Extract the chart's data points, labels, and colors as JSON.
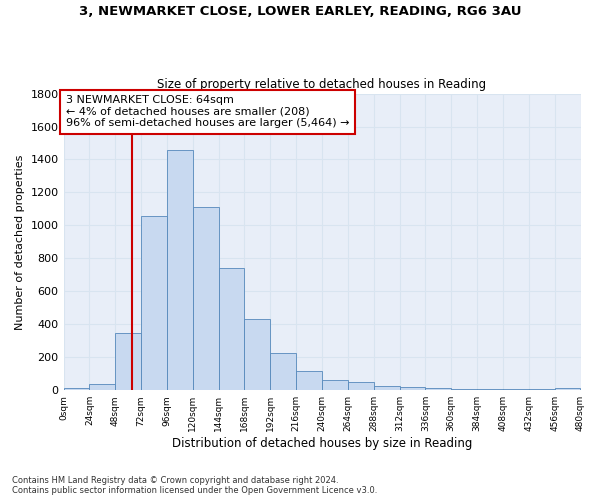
{
  "title1": "3, NEWMARKET CLOSE, LOWER EARLEY, READING, RG6 3AU",
  "title2": "Size of property relative to detached houses in Reading",
  "xlabel": "Distribution of detached houses by size in Reading",
  "ylabel": "Number of detached properties",
  "bin_edges": [
    0,
    24,
    48,
    72,
    96,
    120,
    144,
    168,
    192,
    216,
    240,
    264,
    288,
    312,
    336,
    360,
    384,
    408,
    432,
    456,
    480
  ],
  "bar_heights": [
    15,
    35,
    350,
    1060,
    1460,
    1110,
    740,
    435,
    225,
    115,
    60,
    50,
    28,
    20,
    15,
    10,
    8,
    5,
    5,
    15
  ],
  "bar_facecolor": "#c8d9f0",
  "bar_edgecolor": "#5588bb",
  "grid_color": "#d8e4f0",
  "bg_color": "#e8eef8",
  "fig_bg_color": "#ffffff",
  "vline_x": 64,
  "vline_color": "#cc0000",
  "annotation_text": "3 NEWMARKET CLOSE: 64sqm\n← 4% of detached houses are smaller (208)\n96% of semi-detached houses are larger (5,464) →",
  "annotation_box_color": "#ffffff",
  "annotation_box_edgecolor": "#cc0000",
  "ylim": [
    0,
    1800
  ],
  "yticks": [
    0,
    200,
    400,
    600,
    800,
    1000,
    1200,
    1400,
    1600,
    1800
  ],
  "footer_text": "Contains HM Land Registry data © Crown copyright and database right 2024.\nContains public sector information licensed under the Open Government Licence v3.0.",
  "tick_labels": [
    "0sqm",
    "24sqm",
    "48sqm",
    "72sqm",
    "96sqm",
    "120sqm",
    "144sqm",
    "168sqm",
    "192sqm",
    "216sqm",
    "240sqm",
    "264sqm",
    "288sqm",
    "312sqm",
    "336sqm",
    "360sqm",
    "384sqm",
    "408sqm",
    "432sqm",
    "456sqm",
    "480sqm"
  ]
}
